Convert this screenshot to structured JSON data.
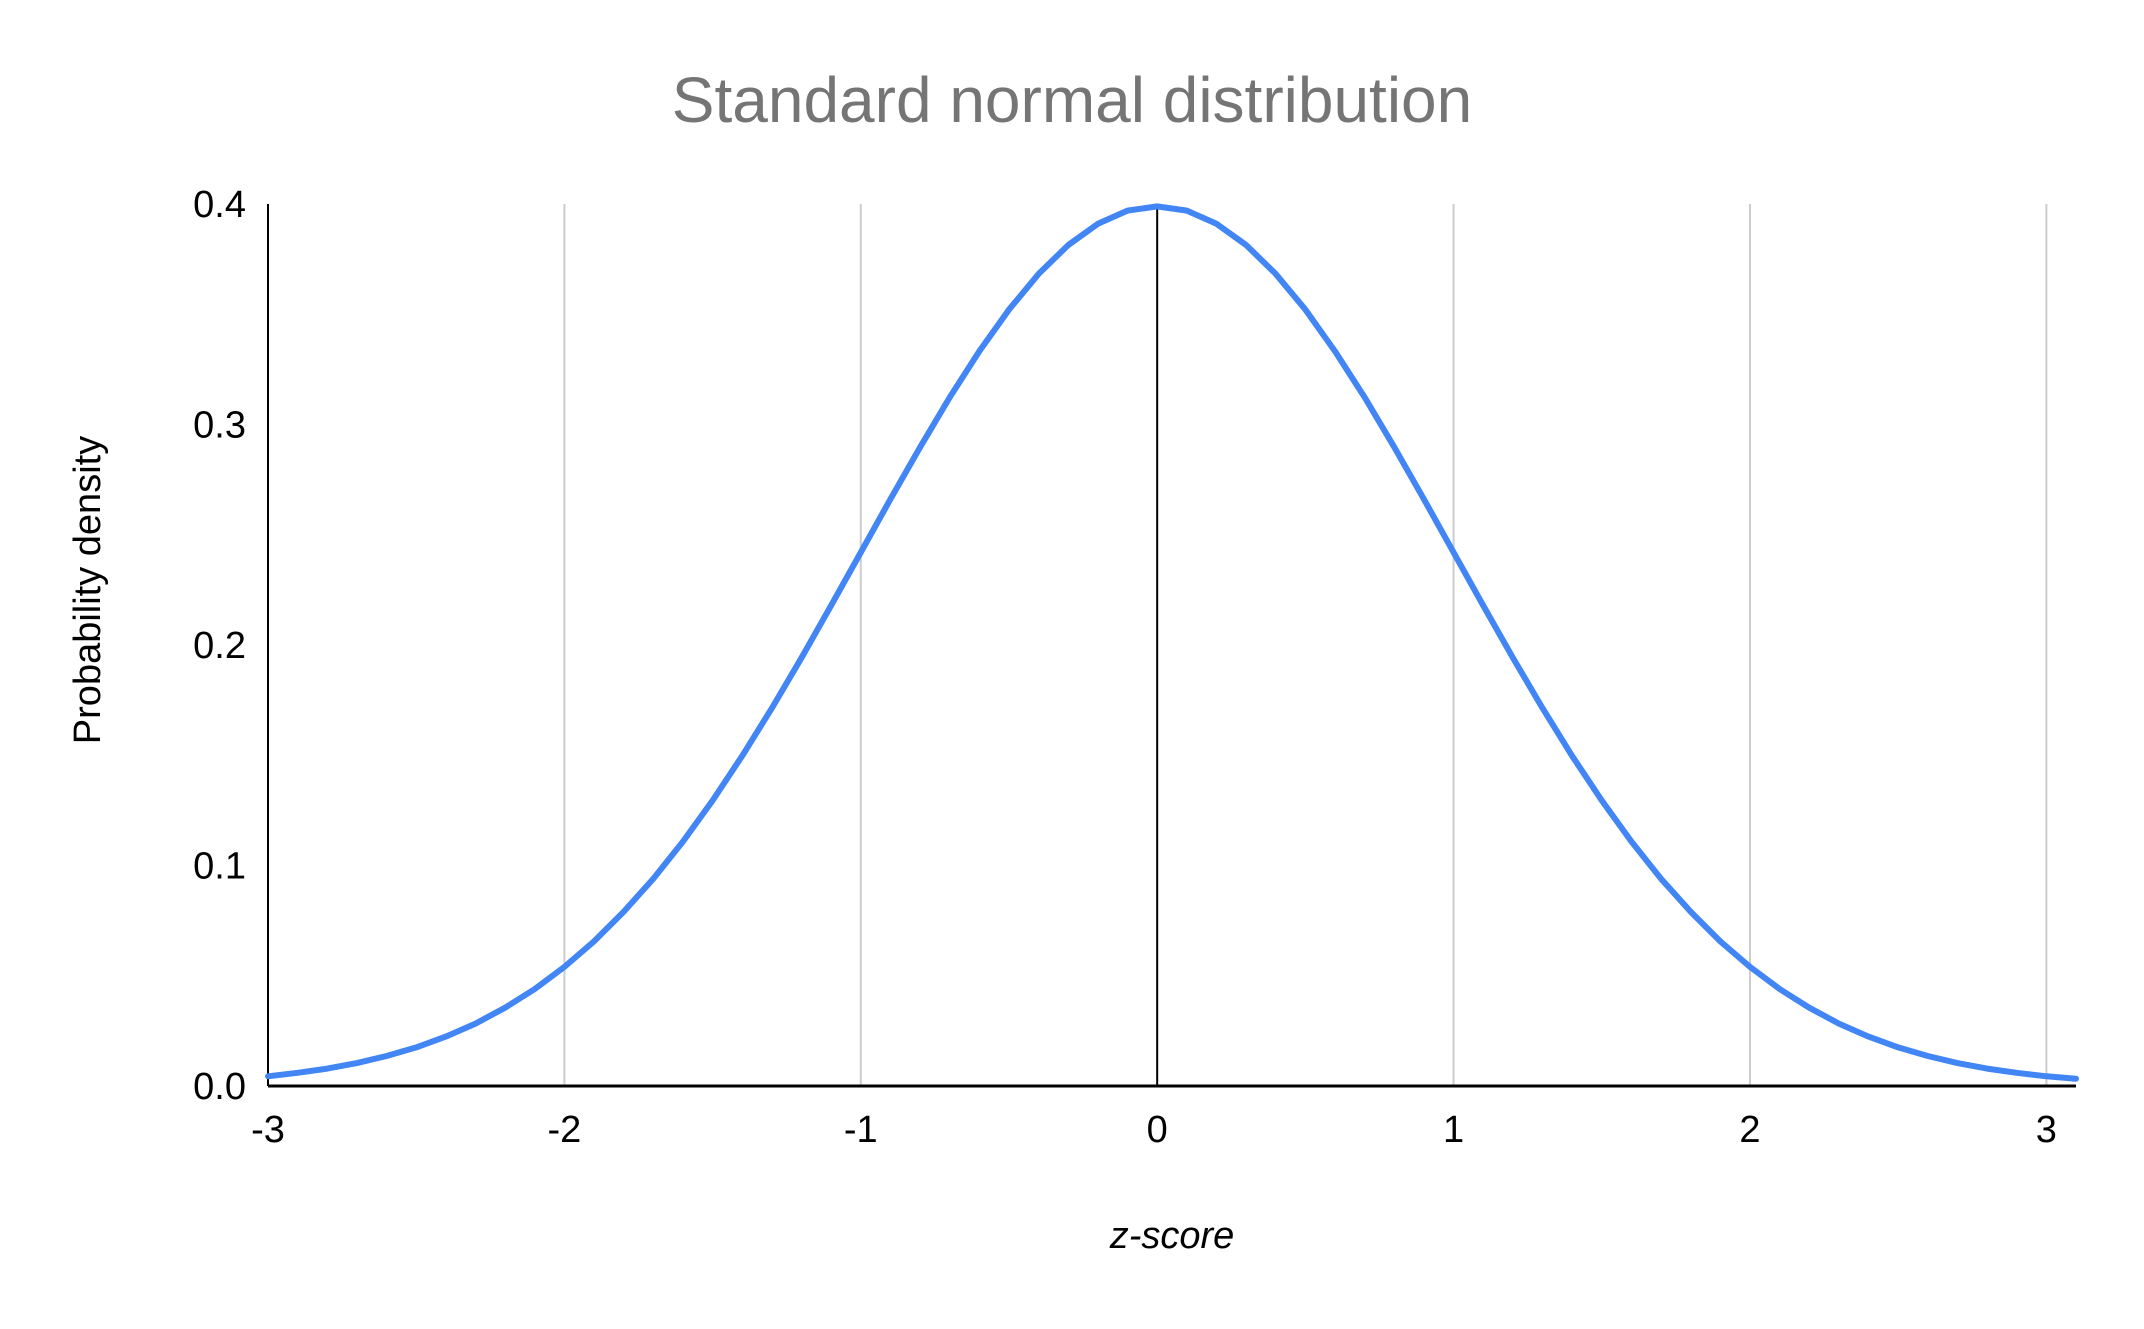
{
  "chart_data": {
    "type": "line",
    "title": "Standard normal distribution",
    "xlabel": "z-score",
    "ylabel": "Probability density",
    "xlim": [
      -3,
      3.1
    ],
    "ylim": [
      0,
      0.4
    ],
    "x_ticks": [
      -3,
      -2,
      -1,
      0,
      1,
      2,
      3
    ],
    "x_tick_labels": [
      "-3",
      "-2",
      "-1",
      "0",
      "1",
      "2",
      "3"
    ],
    "y_ticks": [
      0,
      0.1,
      0.2,
      0.3,
      0.4
    ],
    "y_tick_labels": [
      "0.0",
      "0.1",
      "0.2",
      "0.3",
      "0.4"
    ],
    "grid": "vertical",
    "legend": "none",
    "colors": {
      "line": "#4285f4",
      "grid": "#cccccc",
      "axis": "#000000",
      "title": "#757575"
    },
    "series": [
      {
        "x": [
          -3.0,
          -2.9,
          -2.8,
          -2.7,
          -2.6,
          -2.5,
          -2.4,
          -2.3,
          -2.2,
          -2.1,
          -2.0,
          -1.9,
          -1.8,
          -1.7,
          -1.6,
          -1.5,
          -1.4,
          -1.3,
          -1.2,
          -1.1,
          -1.0,
          -0.9,
          -0.8,
          -0.7,
          -0.6,
          -0.5,
          -0.4,
          -0.3,
          -0.2,
          -0.1,
          0.0,
          0.1,
          0.2,
          0.3,
          0.4,
          0.5,
          0.6,
          0.7,
          0.8,
          0.9,
          1.0,
          1.1,
          1.2,
          1.3,
          1.4,
          1.5,
          1.6,
          1.7,
          1.8,
          1.9,
          2.0,
          2.1,
          2.2,
          2.3,
          2.4,
          2.5,
          2.6,
          2.7,
          2.8,
          2.9,
          3.0,
          3.1
        ],
        "y": [
          0.0044,
          0.006,
          0.0079,
          0.0104,
          0.0136,
          0.0175,
          0.0224,
          0.0283,
          0.0355,
          0.044,
          0.054,
          0.0656,
          0.079,
          0.094,
          0.1109,
          0.1295,
          0.1497,
          0.1714,
          0.1942,
          0.2179,
          0.242,
          0.2661,
          0.2897,
          0.3123,
          0.3332,
          0.3521,
          0.3683,
          0.3814,
          0.391,
          0.397,
          0.3989,
          0.397,
          0.391,
          0.3814,
          0.3683,
          0.3521,
          0.3332,
          0.3123,
          0.2897,
          0.2661,
          0.242,
          0.2179,
          0.1942,
          0.1714,
          0.1497,
          0.1295,
          0.1109,
          0.094,
          0.079,
          0.0656,
          0.054,
          0.044,
          0.0355,
          0.0283,
          0.0224,
          0.0175,
          0.0136,
          0.0104,
          0.0079,
          0.006,
          0.0044,
          0.0033
        ]
      }
    ]
  }
}
